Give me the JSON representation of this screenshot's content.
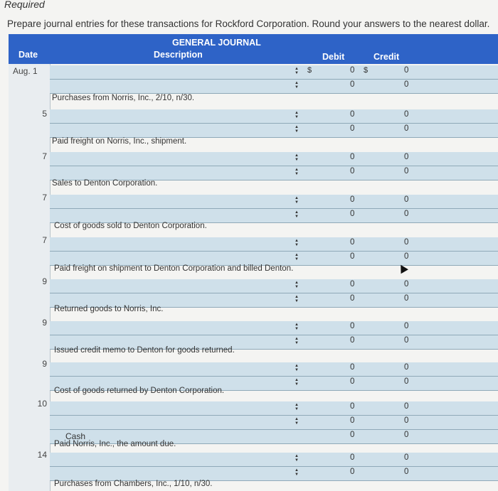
{
  "required": "Required",
  "instruction": "Prepare journal entries for these transactions for Rockford Corporation. Round your answers to the nearest dollar.",
  "header": {
    "title": "GENERAL JOURNAL",
    "date": "Date",
    "description": "Description",
    "debit": "Debit",
    "credit": "Credit"
  },
  "currency": "$",
  "entries": [
    {
      "date": "Aug.  1",
      "desc": "Purchases from Norris, Inc., 2/10, n/30.",
      "rows": [
        {
          "debit": "0",
          "credit": "0"
        },
        {
          "debit": "0",
          "credit": "0"
        }
      ]
    },
    {
      "date": "5",
      "desc": "Paid freight on Norris, Inc., shipment.",
      "rows": [
        {
          "debit": "0",
          "credit": "0"
        },
        {
          "debit": "0",
          "credit": "0"
        }
      ]
    },
    {
      "date": "7",
      "desc": "Sales to Denton Corporation.",
      "rows": [
        {
          "debit": "0",
          "credit": "0"
        },
        {
          "debit": "0",
          "credit": "0"
        }
      ]
    },
    {
      "date": "7",
      "desc": "Cost of goods sold to Denton Corporation.",
      "rows": [
        {
          "debit": "0",
          "credit": "0"
        },
        {
          "debit": "0",
          "credit": "0"
        }
      ]
    },
    {
      "date": "7",
      "desc": "Paid freight on shipment to Denton Corporation and billed Denton.",
      "rows": [
        {
          "debit": "0",
          "credit": "0"
        },
        {
          "debit": "0",
          "credit": "0"
        }
      ]
    },
    {
      "date": "9",
      "desc": "Returned goods to Norris, Inc.",
      "rows": [
        {
          "debit": "0",
          "credit": "0"
        },
        {
          "debit": "0",
          "credit": "0"
        }
      ]
    },
    {
      "date": "9",
      "desc": "Issued credit memo to Denton for goods returned.",
      "rows": [
        {
          "debit": "0",
          "credit": "0"
        },
        {
          "debit": "0",
          "credit": "0"
        }
      ]
    },
    {
      "date": "9",
      "desc": "Cost of goods returned by Denton Corporation.",
      "rows": [
        {
          "debit": "0",
          "credit": "0"
        },
        {
          "debit": "0",
          "credit": "0"
        }
      ]
    },
    {
      "date": "10",
      "desc": "Paid Norris, Inc., the amount due.",
      "rows": [
        {
          "debit": "0",
          "credit": "0"
        },
        {
          "debit": "0",
          "credit": "0"
        },
        {
          "account": "Cash",
          "debit": "0",
          "credit": "0"
        }
      ]
    },
    {
      "date": "14",
      "desc": "Purchases from Chambers, Inc., 1/10, n/30.",
      "rows": [
        {
          "debit": "0",
          "credit": "0"
        },
        {
          "debit": "0",
          "credit": "0"
        }
      ]
    }
  ]
}
